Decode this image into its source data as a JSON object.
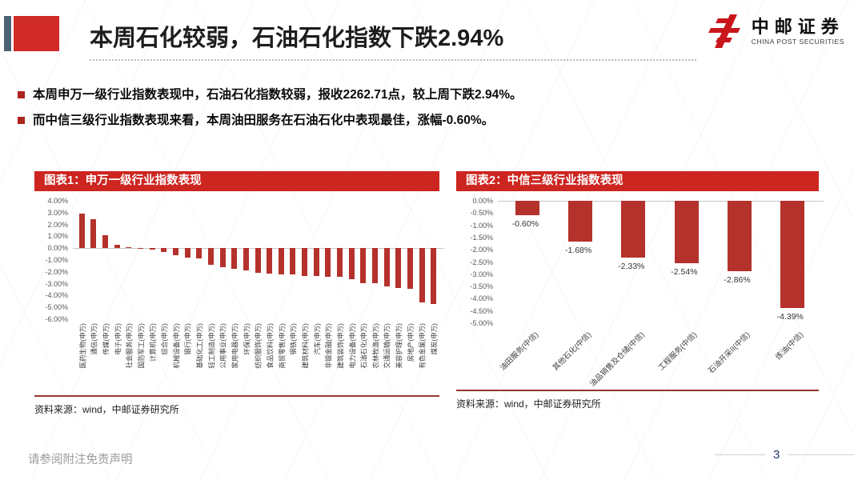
{
  "slide": {
    "title": "本周石化较弱，石油石化指数下跌2.94%",
    "logo_text": "中邮证券",
    "logo_subtext": "CHINA POST SECURITIES",
    "bullets": [
      "本周申万一级行业指数表现中，石油石化指数较弱，报收2262.71点，较上周下跌2.94%。",
      "而中信三级行业指数表现来看，本周油田服务在石油石化中表现最佳，涨幅-0.60%。"
    ],
    "footer_disclaimer": "请参阅附注免责声明",
    "page_number": "3"
  },
  "colors": {
    "accent_red": "#cd2520",
    "accent_slate": "#4d6374",
    "bar_red": "#b5312c",
    "page_number_blue": "#1f3864",
    "logo_red": "#c9161d"
  },
  "chart_data": [
    {
      "type": "bar",
      "title": "图表1：申万一级行业指数表现",
      "source": "资料来源：wind，中邮证券研究所",
      "categories": [
        "医药生物(申万)",
        "通信(申万)",
        "传媒(申万)",
        "电子(申万)",
        "社会服务(申万)",
        "国防军工(申万)",
        "计算机(申万)",
        "综合(申万)",
        "机械设备(申万)",
        "银行(申万)",
        "基础化工(申万)",
        "轻工制造(申万)",
        "公用事业(申万)",
        "家用电器(申万)",
        "环保(申万)",
        "纺织服饰(申万)",
        "食品饮料(申万)",
        "商贸零售(申万)",
        "钢铁(申万)",
        "建筑材料(申万)",
        "汽车(申万)",
        "非银金融(申万)",
        "建筑装饰(申万)",
        "电力设备(申万)",
        "石油石化(申万)",
        "农林牧渔(申万)",
        "交通运输(申万)",
        "美容护理(申万)",
        "房地产(申万)",
        "有色金属(申万)",
        "煤炭(申万)"
      ],
      "values": [
        2.9,
        2.45,
        1.1,
        0.3,
        0.1,
        0.03,
        -0.1,
        -0.35,
        -0.6,
        -0.8,
        -0.85,
        -1.4,
        -1.6,
        -1.75,
        -1.85,
        -2.1,
        -2.15,
        -2.2,
        -2.25,
        -2.35,
        -2.35,
        -2.45,
        -2.45,
        -2.65,
        -2.94,
        -2.95,
        -3.25,
        -3.35,
        -3.45,
        -4.6,
        -4.75
      ],
      "ylim": [
        -6,
        4
      ],
      "ytick_step": 1,
      "ytick_format": "0.00%",
      "bar_color": "#b5312c",
      "grid": "zero-line-only",
      "legend": "none",
      "show_value_labels": false,
      "category_label_rotation": -90
    },
    {
      "type": "bar",
      "title": "图表2：中信三级行业指数表现",
      "source": "资料来源：wind，中邮证券研究所",
      "categories": [
        "油田服务(中信)",
        "其他石化(中信)",
        "油品销售及仓储(中信)",
        "工程服务(中信)",
        "石油开采II(中信)",
        "炼油(中信)"
      ],
      "values": [
        -0.6,
        -1.68,
        -2.33,
        -2.54,
        -2.86,
        -4.39
      ],
      "value_labels": [
        "-0.60%",
        "-1.68%",
        "-2.33%",
        "-2.54%",
        "-2.86%",
        "-4.39%"
      ],
      "ylim": [
        -5,
        0
      ],
      "ytick_step": 0.5,
      "ytick_format": "0.00%",
      "bar_color": "#b5312c",
      "grid": "zero-line-only",
      "legend": "none",
      "show_value_labels": true,
      "category_label_rotation": -45
    }
  ]
}
